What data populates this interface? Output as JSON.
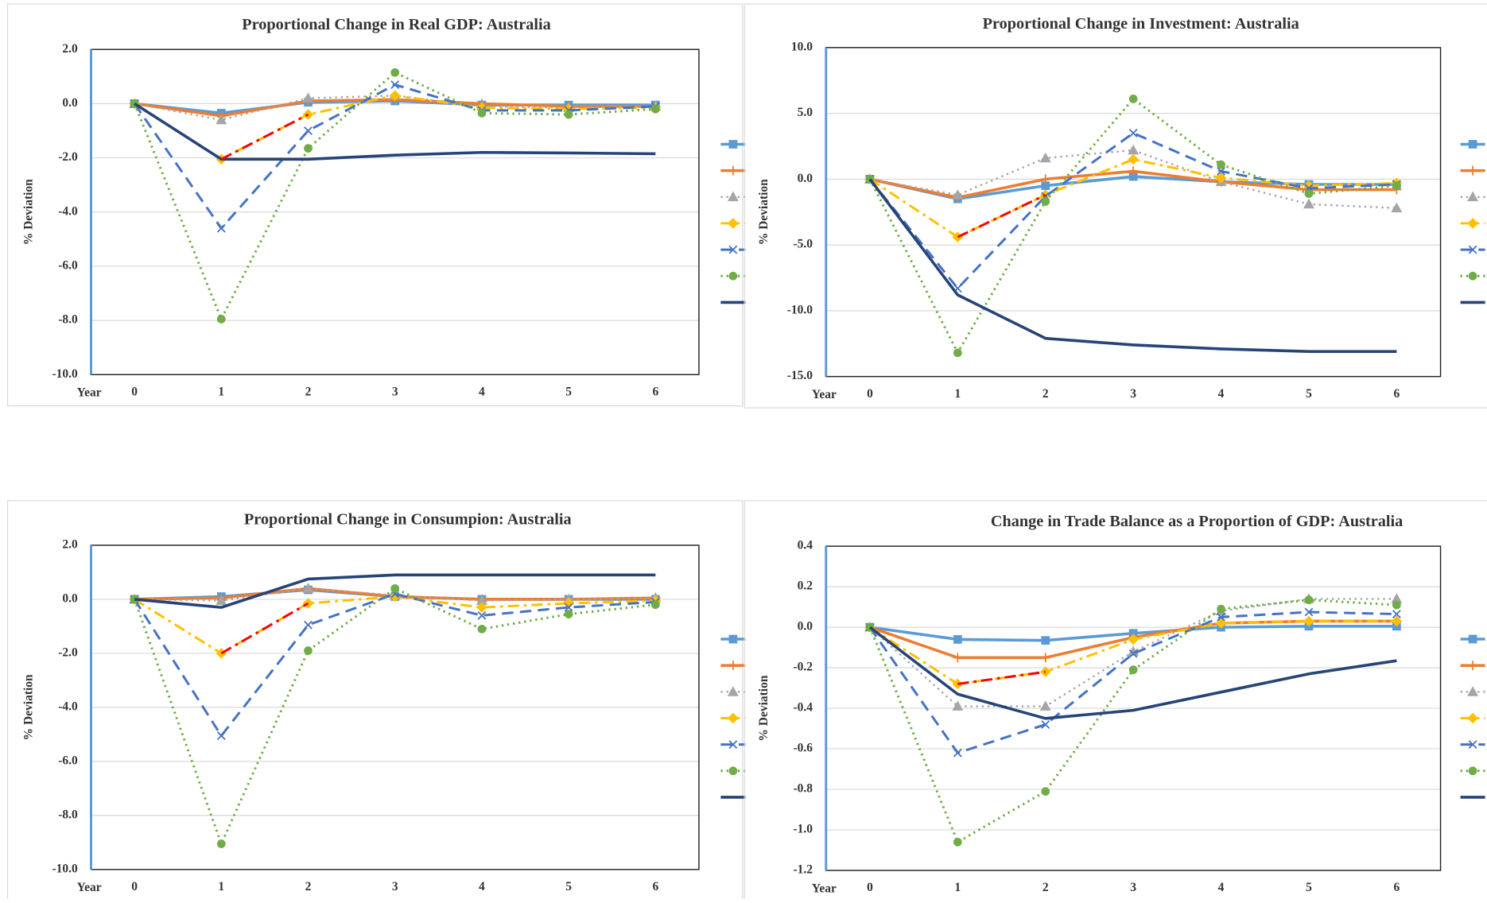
{
  "chart_data": [
    {
      "type": "line",
      "title": "Proportional Change in Real GDP: Australia",
      "y_label": "% Deviation",
      "x_label": "Year",
      "categories": [
        "0",
        "1",
        "2",
        "3",
        "4",
        "5",
        "6"
      ],
      "ylim": [
        -10,
        2
      ],
      "yticks": [
        {
          "value": -10,
          "label": "-10.0"
        },
        {
          "value": -8,
          "label": "-8.0"
        },
        {
          "value": -6,
          "label": "-6.0"
        },
        {
          "value": -4,
          "label": "-4.0"
        },
        {
          "value": -2,
          "label": "-2.0"
        },
        {
          "value": 0,
          "label": "0.0"
        },
        {
          "value": 2,
          "label": "2.0"
        }
      ],
      "grid": true,
      "series": [
        {
          "color": "#5b9bd5",
          "values": [
            0,
            -0.35,
            0.05,
            0.1,
            -0.05,
            -0.05,
            -0.05
          ]
        },
        {
          "color": "#ed7d31",
          "values": [
            0,
            -0.45,
            0.1,
            0.15,
            0,
            -0.1,
            -0.1
          ]
        },
        {
          "color": "#a5a5a5",
          "values": [
            0,
            -0.6,
            0.2,
            0.3,
            -0.1,
            -0.15,
            -0.1
          ]
        },
        {
          "color": "#ffc000",
          "values": [
            0,
            -2.05,
            -0.4,
            0.3,
            -0.15,
            -0.2,
            -0.15
          ]
        },
        {
          "color": "#4472c4",
          "values": [
            0,
            -4.6,
            -1.0,
            0.7,
            -0.25,
            -0.25,
            -0.1
          ]
        },
        {
          "color": "#70ad47",
          "values": [
            0,
            -7.95,
            -1.65,
            1.15,
            -0.35,
            -0.4,
            -0.2
          ]
        },
        {
          "color": "#264478",
          "values": [
            0,
            -2.05,
            -2.05,
            -1.9,
            -1.8,
            -1.82,
            -1.85
          ]
        },
        {
          "color": "#ff0000",
          "in_legend": false,
          "values": [
            null,
            -2.05,
            -0.4,
            null,
            null,
            null,
            null
          ]
        }
      ]
    },
    {
      "type": "line",
      "title": "Proportional Change in Investment: Australia",
      "y_label": "% Deviation",
      "x_label": "Year",
      "categories": [
        "0",
        "1",
        "2",
        "3",
        "4",
        "5",
        "6"
      ],
      "ylim": [
        -15,
        10
      ],
      "yticks": [
        {
          "value": -15,
          "label": "-15.0"
        },
        {
          "value": -10,
          "label": "-10.0"
        },
        {
          "value": -5,
          "label": "-5.0"
        },
        {
          "value": 0,
          "label": "0.0"
        },
        {
          "value": 5,
          "label": "5.0"
        },
        {
          "value": 10,
          "label": "10.0"
        }
      ],
      "grid": true,
      "series": [
        {
          "color": "#5b9bd5",
          "values": [
            0,
            -1.5,
            -0.5,
            0.2,
            -0.2,
            -0.4,
            -0.4
          ]
        },
        {
          "color": "#ed7d31",
          "values": [
            0,
            -1.4,
            0,
            0.6,
            -0.2,
            -0.8,
            -0.8
          ]
        },
        {
          "color": "#a5a5a5",
          "values": [
            0,
            -1.2,
            1.6,
            2.2,
            -0.2,
            -1.9,
            -2.2
          ]
        },
        {
          "color": "#ffc000",
          "values": [
            0,
            -4.4,
            -1.2,
            1.5,
            0.1,
            -0.5,
            -0.3
          ]
        },
        {
          "color": "#4472c4",
          "values": [
            0,
            -8.3,
            -1.3,
            3.5,
            0.6,
            -0.7,
            -0.4
          ]
        },
        {
          "color": "#70ad47",
          "values": [
            0,
            -13.2,
            -1.7,
            6.1,
            1.1,
            -1.1,
            -0.5
          ]
        },
        {
          "color": "#264478",
          "values": [
            0,
            -8.8,
            -12.1,
            -12.6,
            -12.9,
            -13.1,
            -13.1
          ]
        },
        {
          "color": "#ff0000",
          "in_legend": false,
          "values": [
            null,
            -4.4,
            -1.2,
            null,
            null,
            null,
            null
          ]
        }
      ]
    },
    {
      "type": "line",
      "title": "Proportional Change in Consumpion: Australia",
      "y_label": "% Deviation",
      "x_label": "Year",
      "categories": [
        "0",
        "1",
        "2",
        "3",
        "4",
        "5",
        "6"
      ],
      "ylim": [
        -10,
        2
      ],
      "yticks": [
        {
          "value": -10,
          "label": "-10.0"
        },
        {
          "value": -8,
          "label": "-8.0"
        },
        {
          "value": -6,
          "label": "-6.0"
        },
        {
          "value": -4,
          "label": "-4.0"
        },
        {
          "value": -2,
          "label": "-2.0"
        },
        {
          "value": 0,
          "label": "0.0"
        },
        {
          "value": 2,
          "label": "2.0"
        }
      ],
      "grid": true,
      "series": [
        {
          "color": "#5b9bd5",
          "values": [
            0,
            0.1,
            0.35,
            0.1,
            0,
            0,
            0
          ]
        },
        {
          "color": "#ed7d31",
          "values": [
            0,
            0.05,
            0.4,
            0.1,
            0,
            0,
            0.05
          ]
        },
        {
          "color": "#a5a5a5",
          "values": [
            0,
            -0.05,
            0.4,
            0.15,
            -0.05,
            0,
            0.05
          ]
        },
        {
          "color": "#ffc000",
          "values": [
            0,
            -2.0,
            -0.15,
            0.1,
            -0.3,
            -0.15,
            -0.05
          ]
        },
        {
          "color": "#4472c4",
          "values": [
            0,
            -5.05,
            -0.95,
            0.2,
            -0.6,
            -0.3,
            -0.1
          ]
        },
        {
          "color": "#70ad47",
          "values": [
            0,
            -9.05,
            -1.9,
            0.4,
            -1.1,
            -0.55,
            -0.2
          ]
        },
        {
          "color": "#264478",
          "values": [
            0,
            -0.3,
            0.75,
            0.9,
            0.9,
            0.9,
            0.9
          ]
        },
        {
          "color": "#ff0000",
          "in_legend": false,
          "values": [
            null,
            -2.0,
            -0.15,
            null,
            null,
            null,
            null
          ]
        }
      ]
    },
    {
      "type": "line",
      "title": "Change in Trade Balance as a Proportion of GDP: Australia",
      "y_label": "% Deviation",
      "x_label": "Year",
      "categories": [
        "0",
        "1",
        "2",
        "3",
        "4",
        "5",
        "6"
      ],
      "ylim": [
        -1.2,
        0.4
      ],
      "yticks": [
        {
          "value": -1.2,
          "label": "-1.2"
        },
        {
          "value": -1,
          "label": "-1.0"
        },
        -0.8,
        -0.6,
        -0.4,
        -0.2,
        {
          "value": 0,
          "label": "0.0"
        },
        0.2,
        0.4
      ],
      "grid": true,
      "series": [
        {
          "color": "#5b9bd5",
          "values": [
            0,
            -0.06,
            -0.065,
            -0.03,
            0,
            0.005,
            0.005
          ]
        },
        {
          "color": "#ed7d31",
          "values": [
            0,
            -0.15,
            -0.15,
            -0.05,
            0.02,
            0.03,
            0.03
          ]
        },
        {
          "color": "#a5a5a5",
          "values": [
            0,
            -0.39,
            -0.39,
            -0.12,
            0.08,
            0.14,
            0.14
          ]
        },
        {
          "color": "#ffc000",
          "values": [
            0,
            -0.28,
            -0.22,
            -0.06,
            0.02,
            0.03,
            0.03
          ]
        },
        {
          "color": "#4472c4",
          "values": [
            0,
            -0.62,
            -0.48,
            -0.13,
            0.05,
            0.075,
            0.065
          ]
        },
        {
          "color": "#70ad47",
          "values": [
            0,
            -1.06,
            -0.81,
            -0.21,
            0.09,
            0.135,
            0.11
          ]
        },
        {
          "color": "#264478",
          "values": [
            0,
            -0.33,
            -0.45,
            -0.41,
            -0.32,
            -0.23,
            -0.165
          ]
        },
        {
          "color": "#ff0000",
          "in_legend": false,
          "values": [
            null,
            -0.28,
            -0.22,
            null,
            null,
            null,
            null
          ]
        }
      ]
    }
  ]
}
